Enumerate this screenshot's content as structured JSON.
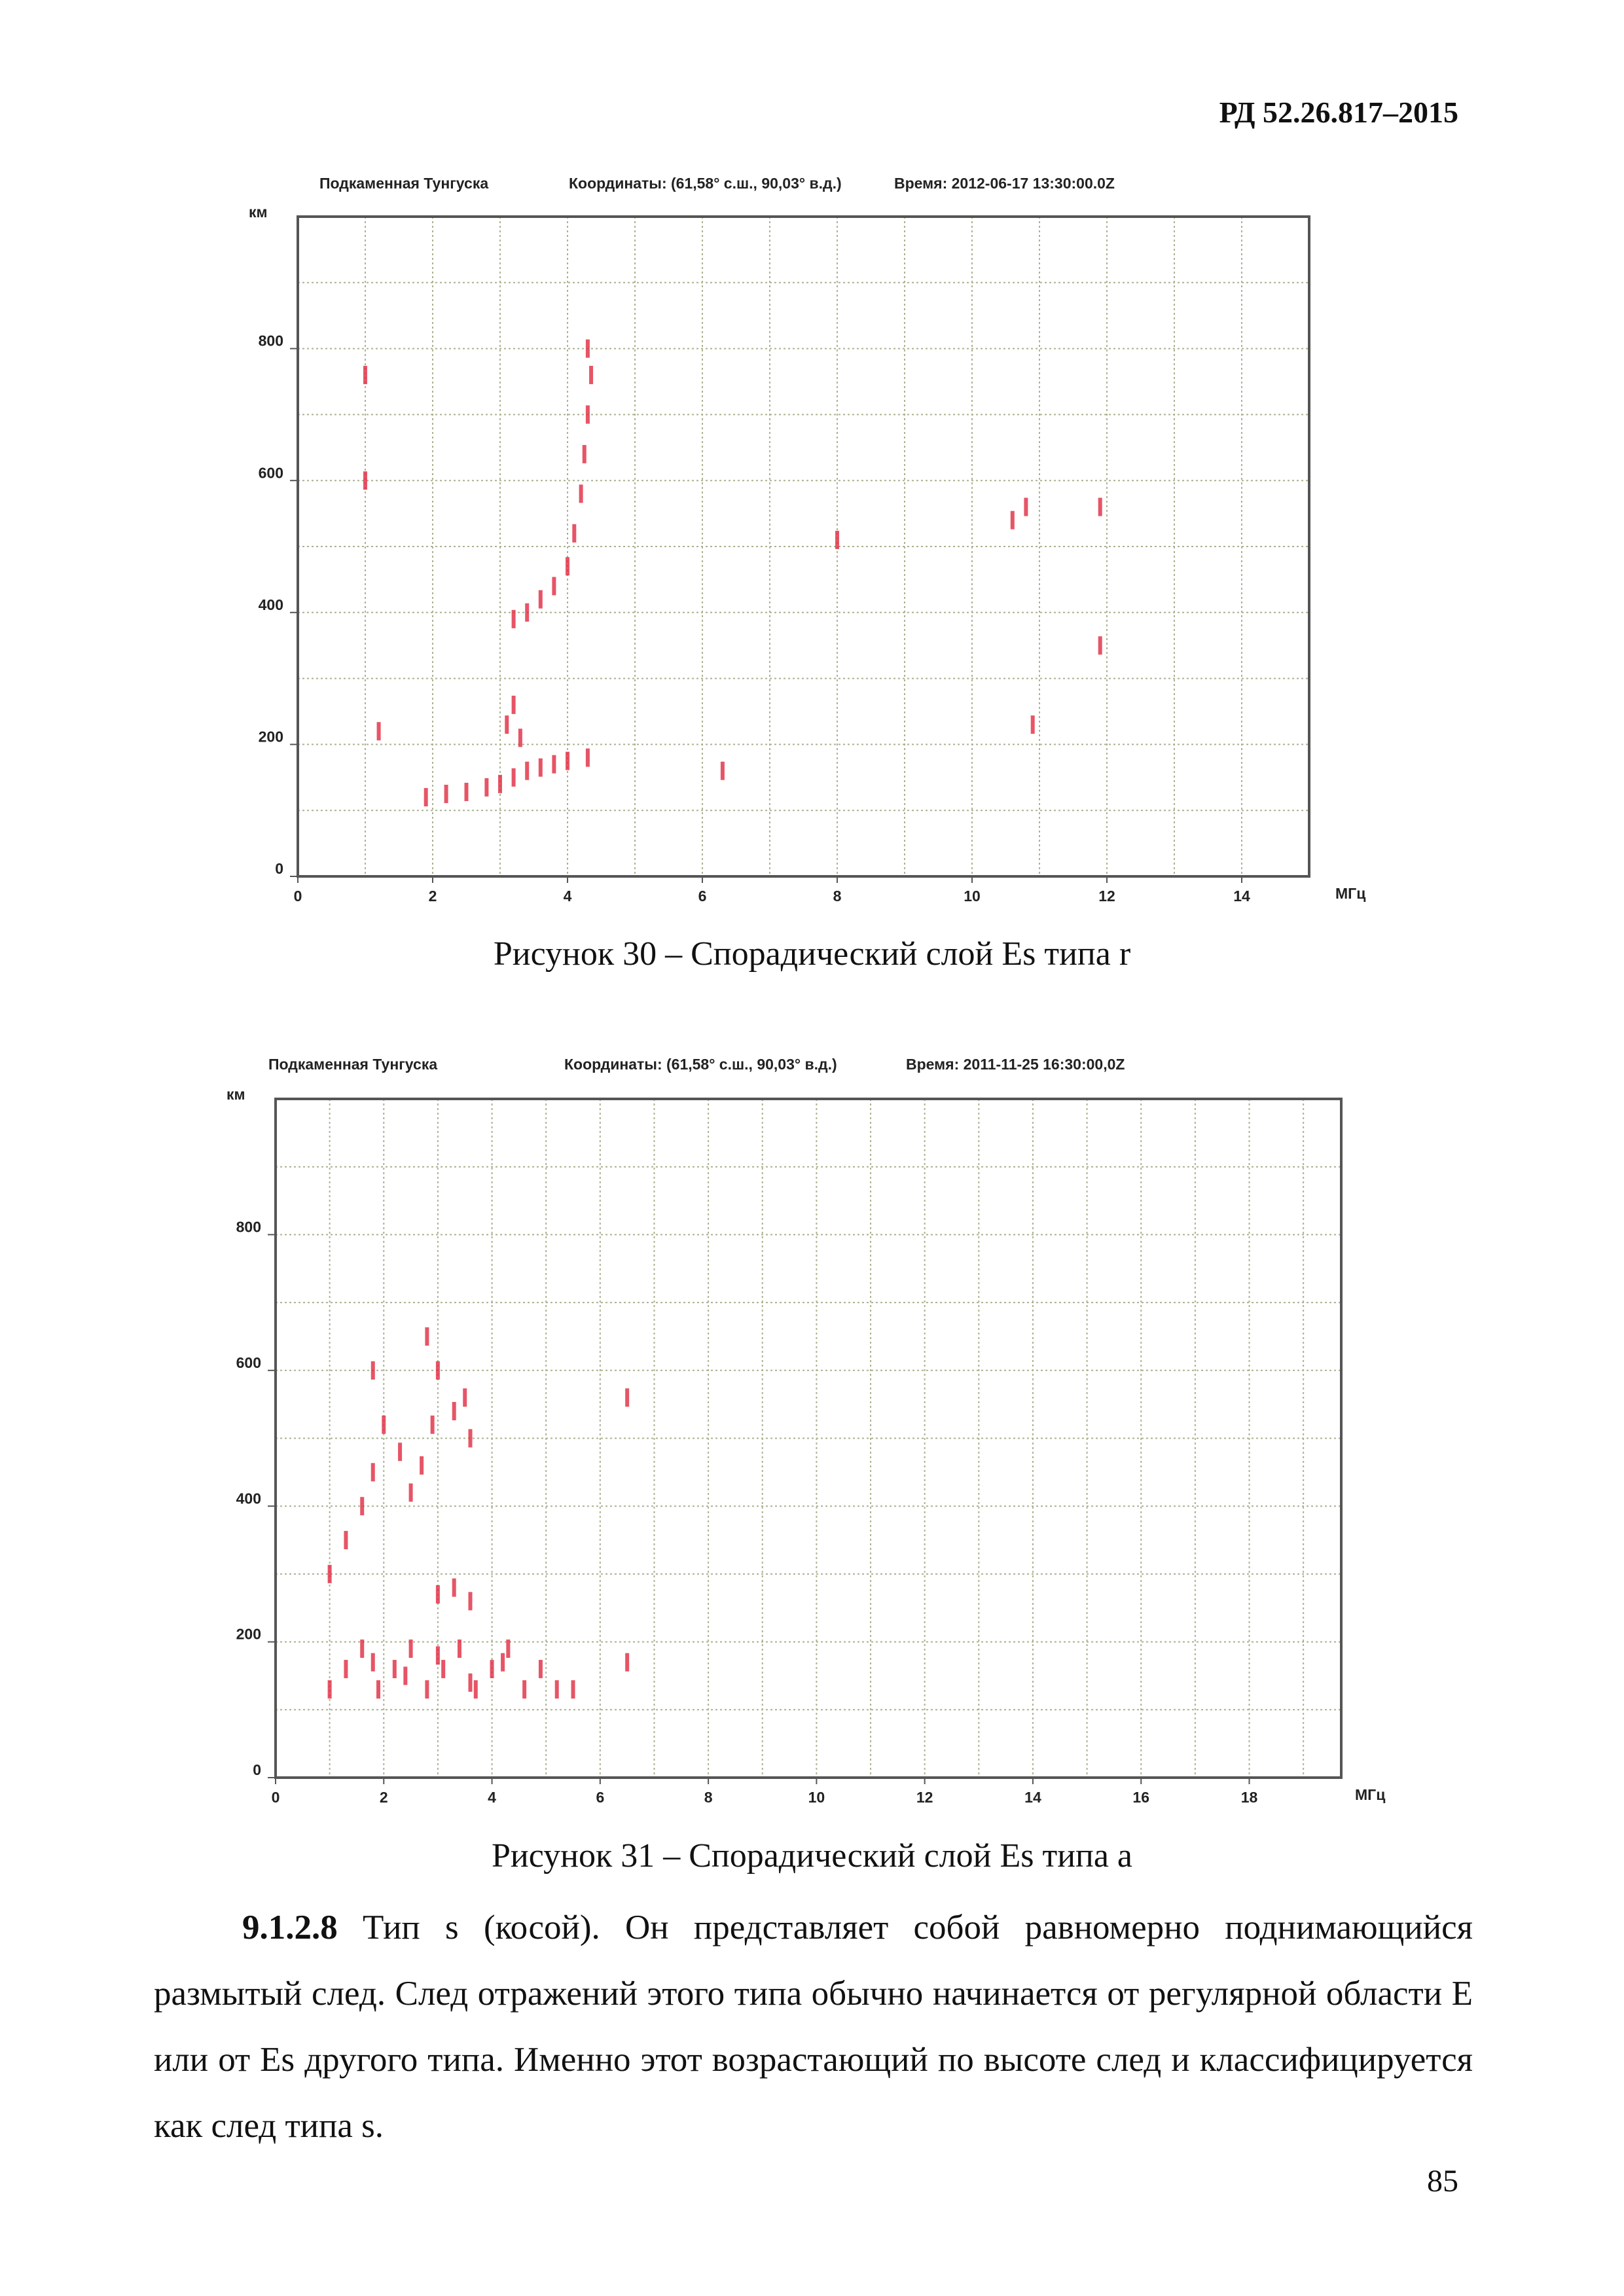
{
  "header": {
    "code": "РД 52.26.817–2015"
  },
  "figures": [
    {
      "chart": {
        "type": "scatter",
        "station": "Подкаменная Тунгуска",
        "coordinates": "Координаты: (61,58° с.ш., 90,03° в.д.)",
        "time": "Время: 2012-06-17 13:30:00.0Z",
        "y_label": "км",
        "x_label": "МГц",
        "xlim": [
          0,
          15
        ],
        "ylim": [
          0,
          1000
        ],
        "xticks": [
          0,
          2,
          4,
          6,
          8,
          10,
          12,
          14
        ],
        "yticks": [
          0,
          200,
          400,
          600,
          800
        ],
        "grid": true,
        "grid_x_step": 1,
        "grid_y_step": 100,
        "color": "#e02a40",
        "x": [
          1.9,
          2.2,
          2.5,
          2.8,
          3.0,
          3.2,
          3.4,
          3.6,
          3.8,
          4.0,
          4.3,
          3.1,
          3.2,
          3.3,
          3.2,
          3.4,
          3.6,
          3.8,
          4.0,
          4.1,
          4.2,
          4.25,
          4.3,
          4.35,
          4.3,
          1.0,
          1.0,
          1.2,
          10.8,
          10.6,
          11.9,
          11.9,
          6.3,
          8.0,
          10.9
        ],
        "y": [
          120,
          125,
          128,
          135,
          140,
          150,
          160,
          165,
          170,
          175,
          180,
          230,
          260,
          210,
          390,
          400,
          420,
          440,
          470,
          520,
          580,
          640,
          700,
          760,
          800,
          760,
          600,
          220,
          560,
          540,
          560,
          350,
          160,
          510,
          230
        ]
      },
      "caption": "Рисунок 30 – Спорадический слой Es типа r"
    },
    {
      "chart": {
        "type": "scatter",
        "station": "Подкаменная Тунгуска",
        "coordinates": "Координаты: (61,58° с.ш., 90,03° в.д.)",
        "time": "Время: 2011-11-25 16:30:00,0Z",
        "y_label": "км",
        "x_label": "МГц",
        "xlim": [
          0,
          19.7
        ],
        "ylim": [
          0,
          1000
        ],
        "xticks": [
          0,
          2,
          4,
          6,
          8,
          10,
          12,
          14,
          16,
          18
        ],
        "yticks": [
          0,
          200,
          400,
          600,
          800
        ],
        "grid": true,
        "grid_x_step": 1,
        "grid_y_step": 100,
        "color": "#e02a40",
        "x": [
          1.0,
          1.3,
          1.6,
          1.9,
          2.2,
          2.5,
          2.8,
          3.1,
          3.4,
          3.7,
          4.0,
          4.3,
          4.6,
          4.9,
          5.2,
          5.5,
          1.8,
          2.4,
          3.0,
          3.6,
          4.2,
          1.0,
          1.3,
          1.6,
          1.8,
          2.0,
          1.8,
          2.3,
          2.5,
          2.7,
          2.9,
          3.0,
          2.8,
          3.3,
          3.5,
          3.6,
          6.5,
          3.0,
          3.3,
          3.6,
          6.5
        ],
        "y": [
          130,
          160,
          190,
          130,
          160,
          190,
          130,
          160,
          190,
          130,
          160,
          190,
          130,
          160,
          130,
          130,
          170,
          150,
          180,
          140,
          170,
          300,
          350,
          400,
          450,
          520,
          600,
          480,
          420,
          460,
          520,
          600,
          650,
          540,
          560,
          500,
          560,
          270,
          280,
          260,
          170
        ]
      },
      "caption": "Рисунок 31 – Спорадический слой Es типа a"
    }
  ],
  "paragraph": {
    "number": "9.1.2.8",
    "text": "Тип s (косой). Он представляет собой равномерно поднимающийся размытый след. След отражений этого типа обычно начинается от регулярной области E или от Es другого типа. Именно этот возрастающий по высоте след и классифицируется как след типа s."
  },
  "page_number": "85"
}
